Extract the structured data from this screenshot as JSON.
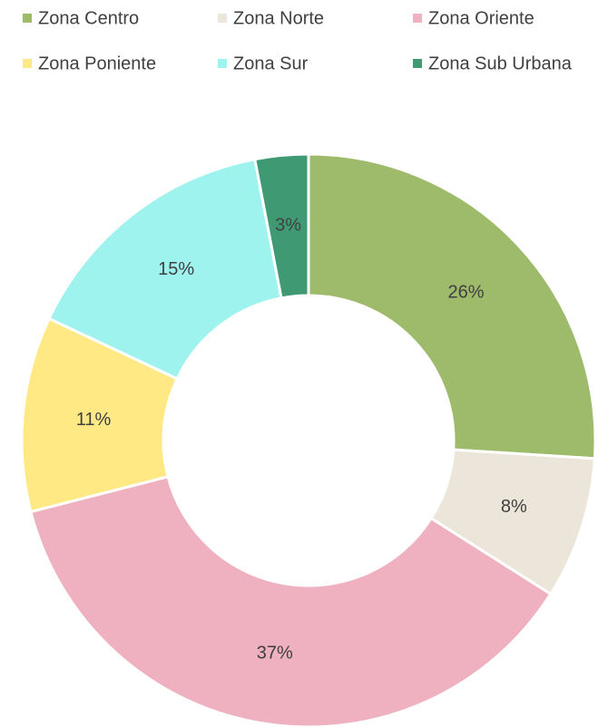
{
  "chart_data": {
    "type": "donut",
    "categories": [
      "Zona Centro",
      "Zona Norte",
      "Zona Oriente",
      "Zona Poniente",
      "Zona Sur",
      "Zona Sub Urbana"
    ],
    "values": [
      26,
      8,
      37,
      11,
      15,
      3
    ],
    "value_labels": [
      "26%",
      "8%",
      "37%",
      "11%",
      "15%",
      "3%"
    ],
    "colors": [
      "#9dbb6b",
      "#ebe6d9",
      "#efb0bf",
      "#ffe985",
      "#9ff3ee",
      "#3f9a73"
    ],
    "legend": "top"
  }
}
